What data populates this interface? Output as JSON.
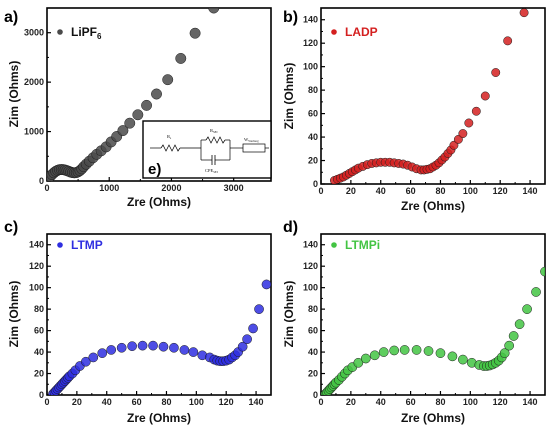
{
  "chart_data": [
    {
      "type": "scatter",
      "panel_label": "a)",
      "legend": [
        {
          "main": "LiPF",
          "sub": "6"
        }
      ],
      "color": "#4a4a4a",
      "xlabel": "Zre (Ohms)",
      "ylabel": "Zim (Ohms)",
      "xlim": [
        0,
        3600
      ],
      "ylim": [
        0,
        3500
      ],
      "xticks": [
        0,
        1000,
        2000,
        3000
      ],
      "yticks": [
        0,
        1000,
        2000,
        3000
      ],
      "x": [
        20,
        50,
        80,
        110,
        140,
        170,
        200,
        230,
        260,
        290,
        320,
        350,
        380,
        410,
        440,
        470,
        500,
        530,
        560,
        590,
        630,
        680,
        740,
        800,
        870,
        950,
        1030,
        1120,
        1220,
        1330,
        1460,
        1600,
        1760,
        1940,
        2150,
        2380,
        2680
      ],
      "y": [
        40,
        90,
        130,
        165,
        195,
        215,
        228,
        232,
        230,
        222,
        210,
        195,
        180,
        170,
        165,
        170,
        185,
        210,
        245,
        290,
        340,
        400,
        470,
        540,
        610,
        690,
        790,
        900,
        1020,
        1170,
        1340,
        1530,
        1760,
        2050,
        2480,
        2990,
        3500
      ]
    },
    {
      "type": "scatter",
      "panel_label": "b)",
      "legend": [
        {
          "main": "LADP",
          "sub": ""
        }
      ],
      "color": "#d42020",
      "xlabel": "Zre (Ohms)",
      "ylabel": "Zim (Ohms)",
      "xlim": [
        0,
        150
      ],
      "ylim": [
        0,
        150
      ],
      "xticks": [
        0,
        20,
        40,
        60,
        80,
        100,
        120,
        140
      ],
      "yticks": [
        0,
        20,
        40,
        60,
        80,
        100,
        120,
        140
      ],
      "x": [
        9,
        11,
        13,
        15,
        17,
        19,
        21,
        23,
        25,
        28,
        31,
        34,
        37,
        40,
        43,
        46,
        49,
        52,
        55,
        58,
        61,
        64,
        67,
        69,
        71,
        73,
        75,
        77,
        79,
        81,
        83,
        85,
        87,
        89,
        92,
        95,
        99,
        104,
        110,
        117,
        125,
        136
      ],
      "y": [
        3,
        4,
        5,
        6,
        7.5,
        9,
        10.5,
        12,
        13.5,
        15,
        16.5,
        17.5,
        18,
        18.5,
        18.5,
        18.5,
        18,
        17.5,
        17,
        16,
        14.5,
        13,
        12,
        12,
        12.5,
        13,
        14.5,
        16,
        18,
        20.5,
        23,
        26,
        29,
        33,
        38,
        43,
        52,
        62,
        75,
        95,
        122,
        146
      ]
    },
    {
      "type": "scatter",
      "panel_label": "c)",
      "legend": [
        {
          "main": "LTMP",
          "sub": ""
        }
      ],
      "color": "#2e2ee0",
      "xlabel": "Zre (Ohms)",
      "ylabel": "Zim (Ohms)",
      "xlim": [
        0,
        150
      ],
      "ylim": [
        0,
        150
      ],
      "xticks": [
        0,
        20,
        40,
        60,
        80,
        100,
        120,
        140
      ],
      "yticks": [
        0,
        20,
        40,
        60,
        80,
        100,
        120,
        140
      ],
      "x": [
        4,
        5,
        6,
        7,
        8,
        9,
        10,
        11,
        12,
        13,
        14,
        15,
        17,
        19,
        22,
        26,
        31,
        37,
        43,
        50,
        57,
        64,
        71,
        78,
        85,
        92,
        98,
        104,
        109,
        112,
        114,
        116,
        118,
        120,
        122,
        124,
        126,
        128,
        131,
        134,
        138,
        142,
        147
      ],
      "y": [
        1,
        2.5,
        4,
        5.5,
        7,
        8.5,
        10,
        11.5,
        13,
        14.5,
        16,
        17.5,
        20,
        23,
        27,
        31,
        35,
        39,
        42,
        44,
        45.5,
        46,
        46,
        45,
        44,
        42,
        40,
        37,
        35,
        33,
        32,
        31.5,
        31.5,
        32,
        33,
        35,
        37,
        40,
        45,
        52,
        62,
        80,
        103
      ]
    },
    {
      "type": "scatter",
      "panel_label": "d)",
      "legend": [
        {
          "main": "LTMPi",
          "sub": ""
        }
      ],
      "color": "#43c443",
      "xlabel": "Zre (Ohms)",
      "ylabel": "Zim (Ohms)",
      "xlim": [
        0,
        150
      ],
      "ylim": [
        0,
        150
      ],
      "xticks": [
        0,
        20,
        40,
        60,
        80,
        100,
        120,
        140
      ],
      "yticks": [
        0,
        20,
        40,
        60,
        80,
        100,
        120,
        140
      ],
      "x": [
        3,
        4,
        5,
        6,
        7,
        8,
        9,
        10,
        12,
        14,
        16,
        18,
        21,
        25,
        30,
        36,
        42,
        49,
        56,
        64,
        72,
        80,
        88,
        95,
        101,
        106,
        109,
        111,
        113,
        115,
        117,
        119,
        121,
        123,
        126,
        129,
        133,
        138,
        144,
        150
      ],
      "y": [
        1,
        2.5,
        4,
        5.5,
        7,
        8.5,
        10,
        11.5,
        14,
        17,
        20,
        23,
        26,
        30,
        34,
        37,
        40,
        41.5,
        42,
        42,
        41,
        39,
        36,
        33,
        30,
        28,
        27,
        27,
        27.5,
        28.5,
        30,
        32,
        35,
        39,
        46,
        55,
        66,
        80,
        96,
        115
      ]
    }
  ],
  "inset": {
    "label": "e)",
    "r_s": "R",
    "r_s_sub": "s",
    "r_sei": "R",
    "r_sei_sub": "SEI",
    "cpe": "CPE",
    "cpe_sub": "SEI",
    "warburg": "W",
    "warburg_sub": "Warburg"
  }
}
